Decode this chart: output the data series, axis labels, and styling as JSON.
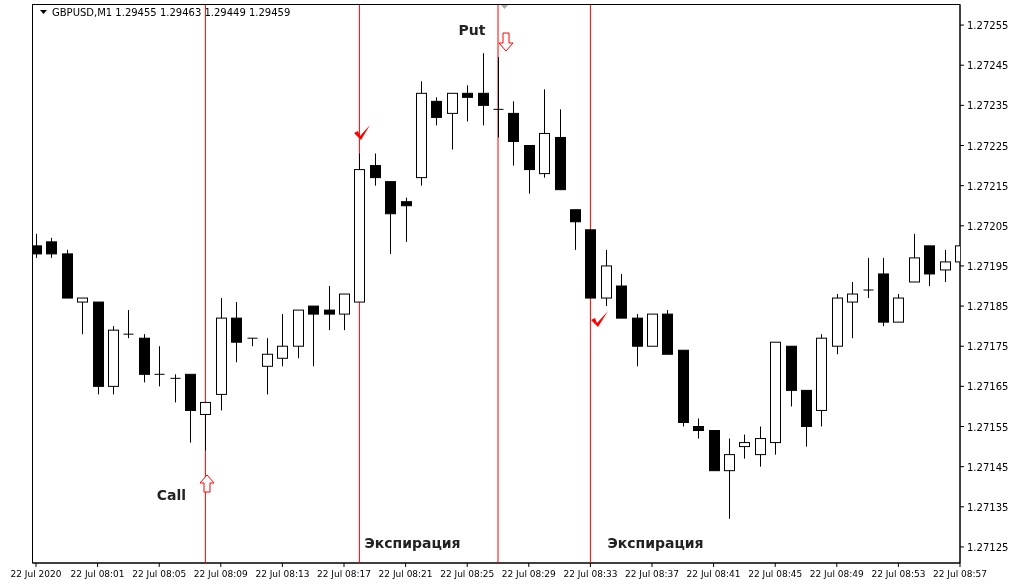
{
  "chart_data": {
    "type": "candlestick",
    "title": "GBPUSD,M1  1.29455 1.29463 1.29449 1.29459",
    "x": [
      "2020-07-22T07:57",
      "2020-07-22T07:58",
      "2020-07-22T07:59",
      "2020-07-22T08:00",
      "2020-07-22T08:01",
      "2020-07-22T08:02",
      "2020-07-22T08:03",
      "2020-07-22T08:04",
      "2020-07-22T08:05",
      "2020-07-22T08:06",
      "2020-07-22T08:07",
      "2020-07-22T08:08",
      "2020-07-22T08:09",
      "2020-07-22T08:10",
      "2020-07-22T08:11",
      "2020-07-22T08:12",
      "2020-07-22T08:13",
      "2020-07-22T08:14",
      "2020-07-22T08:15",
      "2020-07-22T08:16",
      "2020-07-22T08:17",
      "2020-07-22T08:18",
      "2020-07-22T08:19",
      "2020-07-22T08:20",
      "2020-07-22T08:21",
      "2020-07-22T08:22",
      "2020-07-22T08:23",
      "2020-07-22T08:24",
      "2020-07-22T08:25",
      "2020-07-22T08:26",
      "2020-07-22T08:27",
      "2020-07-22T08:28",
      "2020-07-22T08:29",
      "2020-07-22T08:30",
      "2020-07-22T08:31",
      "2020-07-22T08:32",
      "2020-07-22T08:33",
      "2020-07-22T08:34",
      "2020-07-22T08:35",
      "2020-07-22T08:36",
      "2020-07-22T08:37",
      "2020-07-22T08:38",
      "2020-07-22T08:39",
      "2020-07-22T08:40",
      "2020-07-22T08:41",
      "2020-07-22T08:42",
      "2020-07-22T08:43",
      "2020-07-22T08:44",
      "2020-07-22T08:45",
      "2020-07-22T08:46",
      "2020-07-22T08:47",
      "2020-07-22T08:48",
      "2020-07-22T08:49",
      "2020-07-22T08:50",
      "2020-07-22T08:51",
      "2020-07-22T08:52",
      "2020-07-22T08:53",
      "2020-07-22T08:54",
      "2020-07-22T08:55",
      "2020-07-22T08:56",
      "2020-07-22T08:57"
    ],
    "ohlc": [
      [
        1.272,
        1.27203,
        1.27197,
        1.27198
      ],
      [
        1.27201,
        1.27202,
        1.27197,
        1.27198
      ],
      [
        1.27198,
        1.27199,
        1.27187,
        1.27187
      ],
      [
        1.27186,
        1.27187,
        1.27178,
        1.27187
      ],
      [
        1.27186,
        1.27186,
        1.27163,
        1.27165
      ],
      [
        1.27165,
        1.2718,
        1.27163,
        1.27179
      ],
      [
        1.27178,
        1.27184,
        1.27177,
        1.27178
      ],
      [
        1.27177,
        1.27178,
        1.27166,
        1.27168
      ],
      [
        1.27168,
        1.27175,
        1.27165,
        1.27168
      ],
      [
        1.27167,
        1.27168,
        1.27161,
        1.27167
      ],
      [
        1.27168,
        1.27168,
        1.27151,
        1.27159
      ],
      [
        1.27158,
        1.27161,
        1.27149,
        1.27161
      ],
      [
        1.27163,
        1.27187,
        1.27159,
        1.27182
      ],
      [
        1.27182,
        1.27186,
        1.27171,
        1.27176
      ],
      [
        1.27177,
        1.27177,
        1.27175,
        1.27177
      ],
      [
        1.2717,
        1.27177,
        1.27163,
        1.27173
      ],
      [
        1.27172,
        1.27183,
        1.2717,
        1.27175
      ],
      [
        1.27175,
        1.27184,
        1.27172,
        1.27184
      ],
      [
        1.27185,
        1.27185,
        1.2717,
        1.27183
      ],
      [
        1.27184,
        1.2719,
        1.27179,
        1.27183
      ],
      [
        1.27183,
        1.27188,
        1.27179,
        1.27188
      ],
      [
        1.27186,
        1.27223,
        1.27186,
        1.27219
      ],
      [
        1.2722,
        1.27223,
        1.27215,
        1.27217
      ],
      [
        1.27216,
        1.27216,
        1.27198,
        1.27208
      ],
      [
        1.27211,
        1.27212,
        1.27201,
        1.2721
      ],
      [
        1.27217,
        1.27241,
        1.27215,
        1.27238
      ],
      [
        1.27236,
        1.27237,
        1.2723,
        1.27232
      ],
      [
        1.27233,
        1.27238,
        1.27224,
        1.27238
      ],
      [
        1.27238,
        1.2724,
        1.27231,
        1.27237
      ],
      [
        1.27238,
        1.27248,
        1.2723,
        1.27235
      ],
      [
        1.27234,
        1.27247,
        1.27227,
        1.27234
      ],
      [
        1.27233,
        1.27236,
        1.2722,
        1.27226
      ],
      [
        1.27225,
        1.27225,
        1.27213,
        1.27219
      ],
      [
        1.27218,
        1.27239,
        1.27217,
        1.27228
      ],
      [
        1.27227,
        1.27234,
        1.27214,
        1.27214
      ],
      [
        1.27209,
        1.27209,
        1.27199,
        1.27206
      ],
      [
        1.27204,
        1.27204,
        1.27187,
        1.27187
      ],
      [
        1.27187,
        1.27199,
        1.27185,
        1.27195
      ],
      [
        1.2719,
        1.27193,
        1.27182,
        1.27182
      ],
      [
        1.27182,
        1.27183,
        1.2717,
        1.27175
      ],
      [
        1.27175,
        1.27183,
        1.27175,
        1.27183
      ],
      [
        1.27183,
        1.27184,
        1.27173,
        1.27173
      ],
      [
        1.27174,
        1.27174,
        1.27155,
        1.27156
      ],
      [
        1.27155,
        1.27157,
        1.27152,
        1.27154
      ],
      [
        1.27154,
        1.27154,
        1.27144,
        1.27144
      ],
      [
        1.27144,
        1.27152,
        1.27132,
        1.27148
      ],
      [
        1.2715,
        1.27153,
        1.27147,
        1.27151
      ],
      [
        1.27148,
        1.27155,
        1.27145,
        1.27152
      ],
      [
        1.27151,
        1.27176,
        1.27148,
        1.27176
      ],
      [
        1.27175,
        1.27175,
        1.2716,
        1.27164
      ],
      [
        1.27164,
        1.27164,
        1.2715,
        1.27155
      ],
      [
        1.27159,
        1.27178,
        1.27155,
        1.27177
      ],
      [
        1.27175,
        1.27188,
        1.27173,
        1.27187
      ],
      [
        1.27186,
        1.27191,
        1.27177,
        1.27188
      ],
      [
        1.27189,
        1.27197,
        1.27187,
        1.27189
      ],
      [
        1.27193,
        1.27197,
        1.2718,
        1.27181
      ],
      [
        1.27181,
        1.27188,
        1.27181,
        1.27187
      ],
      [
        1.27191,
        1.27203,
        1.27191,
        1.27197
      ],
      [
        1.272,
        1.272,
        1.2719,
        1.27193
      ],
      [
        1.27194,
        1.27199,
        1.27191,
        1.27196
      ],
      [
        1.27196,
        1.27201,
        1.27192,
        1.272
      ]
    ],
    "xlim": [
      "2020-07-22T07:57",
      "2020-07-22T08:57"
    ],
    "xticks": [
      {
        "value": "2020-07-22T07:57",
        "label": "22 Jul 2020"
      },
      {
        "value": "2020-07-22T08:01",
        "label": "22 Jul 08:01"
      },
      {
        "value": "2020-07-22T08:05",
        "label": "22 Jul 08:05"
      },
      {
        "value": "2020-07-22T08:09",
        "label": "22 Jul 08:09"
      },
      {
        "value": "2020-07-22T08:13",
        "label": "22 Jul 08:13"
      },
      {
        "value": "2020-07-22T08:17",
        "label": "22 Jul 08:17"
      },
      {
        "value": "2020-07-22T08:21",
        "label": "22 Jul 08:21"
      },
      {
        "value": "2020-07-22T08:25",
        "label": "22 Jul 08:25"
      },
      {
        "value": "2020-07-22T08:29",
        "label": "22 Jul 08:29"
      },
      {
        "value": "2020-07-22T08:33",
        "label": "22 Jul 08:33"
      },
      {
        "value": "2020-07-22T08:37",
        "label": "22 Jul 08:37"
      },
      {
        "value": "2020-07-22T08:41",
        "label": "22 Jul 08:41"
      },
      {
        "value": "2020-07-22T08:45",
        "label": "22 Jul 08:45"
      },
      {
        "value": "2020-07-22T08:49",
        "label": "22 Jul 08:49"
      },
      {
        "value": "2020-07-22T08:53",
        "label": "22 Jul 08:53"
      },
      {
        "value": "2020-07-22T08:57",
        "label": "22 Jul 08:57"
      }
    ],
    "ylim": [
      1.27121,
      1.2726
    ],
    "yticks": [
      1.27125,
      1.27135,
      1.27145,
      1.27155,
      1.27165,
      1.27175,
      1.27185,
      1.27195,
      1.27205,
      1.27215,
      1.27225,
      1.27235,
      1.27245,
      1.27255
    ],
    "grid": false,
    "ref_lines": [
      {
        "axis": "x",
        "value": "2020-07-22T08:08",
        "color": "#ff0000",
        "label": "Call"
      },
      {
        "axis": "x",
        "value": "2020-07-22T08:18",
        "color": "#ff0000",
        "label": "Экспирация"
      },
      {
        "axis": "x",
        "value": "2020-07-22T08:27",
        "color": "#ff0000",
        "label": "Put"
      },
      {
        "axis": "x",
        "value": "2020-07-22T08:33",
        "color": "#ff0000",
        "label": "Экспирация"
      }
    ]
  }
}
